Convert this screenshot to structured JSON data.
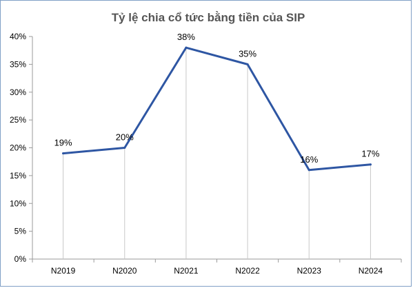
{
  "chart_data": {
    "type": "line",
    "title": "Tỷ lệ chia cổ tức bằng tiền của SIP",
    "categories": [
      "N2019",
      "N2020",
      "N2021",
      "N2022",
      "N2023",
      "N2024"
    ],
    "series": [
      {
        "values": [
          19,
          20,
          38,
          35,
          16,
          17
        ],
        "labels": [
          "19%",
          "20%",
          "38%",
          "35%",
          "16%",
          "17%"
        ],
        "color": "#2e56a3"
      }
    ],
    "y_ticks": [
      "0%",
      "5%",
      "10%",
      "15%",
      "20%",
      "25%",
      "30%",
      "35%",
      "40%"
    ],
    "ylim": [
      0,
      40
    ],
    "xlabel": "",
    "ylabel": "",
    "legend": "none",
    "grid": "vertical drop lines from points",
    "drop_line_color": "#c8c8c8",
    "axis_color": "#9a9a9a"
  }
}
